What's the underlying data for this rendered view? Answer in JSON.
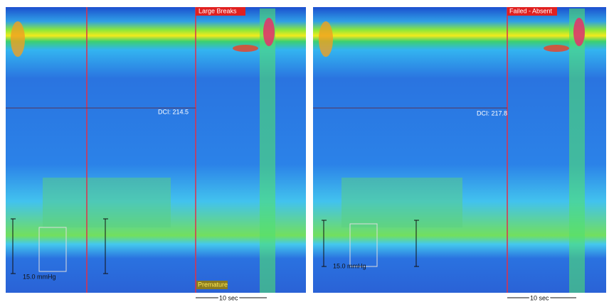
{
  "panels": [
    {
      "label": "Large Breaks",
      "dci": "DCI: 214.5",
      "scale": "15.0 mmHg",
      "marker": "Premature",
      "time": "10 sec"
    },
    {
      "label": "Failed - Absent",
      "dci": "DCI: 217.8",
      "scale": "15.0 mmHg",
      "time": "10 sec"
    }
  ]
}
